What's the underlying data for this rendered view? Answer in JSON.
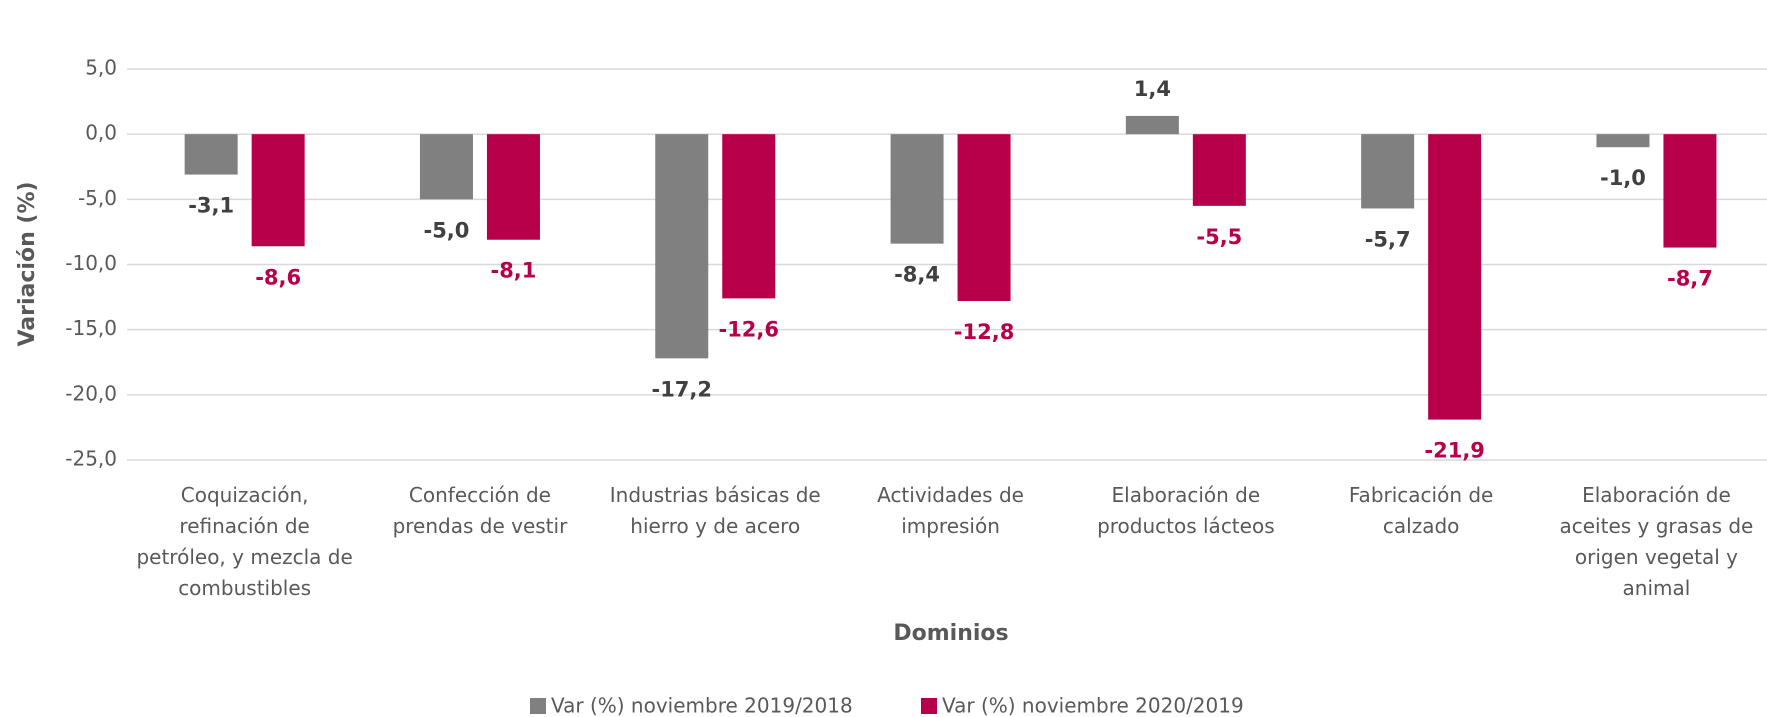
{
  "chart_data": {
    "type": "bar",
    "y_label": "Variación (%)",
    "x_label": "Dominios",
    "categories": [
      "Coquización, refinación de petróleo, y mezcla de combustibles",
      "Confección de prendas de vestir",
      "Industrias básicas de hierro y de acero",
      "Actividades de impresión",
      "Elaboración de productos lácteos",
      "Fabricación de calzado",
      "Elaboración de aceites y grasas de origen vegetal y animal"
    ],
    "series": [
      {
        "name": "Var (%) noviembre 2019/2018",
        "color": "#808080",
        "label_color": "#404040",
        "values": [
          -3.1,
          -5.0,
          -17.2,
          -8.4,
          1.4,
          -5.7,
          -1.0
        ],
        "value_labels": [
          "-3,1",
          "-5,0",
          "-17,2",
          "-8,4",
          "1,4",
          "-5,7",
          "-1,0"
        ]
      },
      {
        "name": "Var (%) noviembre 2020/2019",
        "color": "#b8004a",
        "label_color": "#b8004a",
        "values": [
          -8.6,
          -8.1,
          -12.6,
          -12.8,
          -5.5,
          -21.9,
          -8.7
        ],
        "value_labels": [
          "-8,6",
          "-8,1",
          "-12,6",
          "-12,8",
          "-5,5",
          "-21,9",
          "-8,7"
        ]
      }
    ],
    "ylim": [
      -25,
      5
    ],
    "yticks": [
      {
        "value": 5,
        "label": "5,0"
      },
      {
        "value": 0,
        "label": "0,0"
      },
      {
        "value": -5,
        "label": "-5,0"
      },
      {
        "value": -10,
        "label": "-10,0"
      },
      {
        "value": -15,
        "label": "-15,0"
      },
      {
        "value": -20,
        "label": "-20,0"
      },
      {
        "value": -25,
        "label": "-25,0"
      }
    ],
    "grid": true,
    "legend": "bottom"
  }
}
